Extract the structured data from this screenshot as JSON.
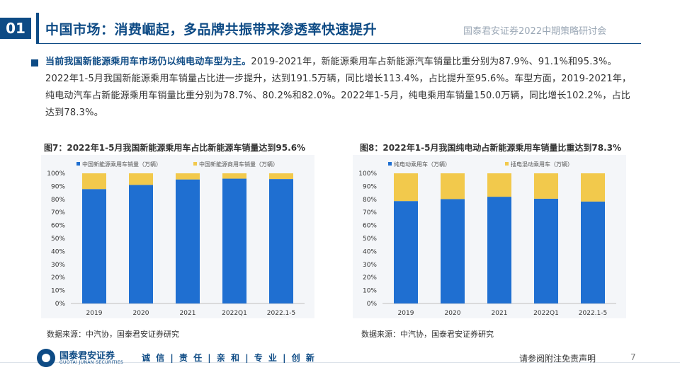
{
  "header": {
    "section_number": "01",
    "title": "中国市场：消费崛起，多品牌共振带来渗透率快速提升",
    "conference": "国泰君安证券2022中期策略研讨会"
  },
  "body": {
    "lead": "当前我国新能源乘用车市场仍以纯电动车型为主。",
    "text": "2019-2021年，新能源乘用车占新能源汽车销量比重分别为87.9%、91.1%和95.3%。2022年1-5月我国新能源乘用车销量占比进一步提升，达到191.5万辆，同比增长113.4%，占比提升至95.6%。车型方面，2019-2021年，纯电动汽车占新能源乘用车销量比重分别为78.7%、80.2%和82.0%。2022年1-5月，纯电乘用车销量150.0万辆，同比增长102.2%，占比达到78.3%。"
  },
  "figures": {
    "fig7_title": "图7：2022年1-5月我国新能源乘用车占比新能源车销量达到95.6%",
    "fig8_title": "图8：2022年1-5月我国纯电动占新能源乘用车销量比重达到78.3%",
    "fig7_source": "数据来源：中汽协，国泰君安证券研究",
    "fig8_source": "数据来源：中汽协，国泰君安证券研究"
  },
  "chart_data": [
    {
      "type": "bar",
      "stacked": true,
      "categories": [
        "2019",
        "2020",
        "2021",
        "2022Q1",
        "2022.1-5"
      ],
      "series": [
        {
          "name": "中国新能源乘用车销量（万辆）",
          "values": [
            87.9,
            91.1,
            95.3,
            95.9,
            95.6
          ],
          "color": "#1f6fd1"
        },
        {
          "name": "中国新能源商用车销量（万辆）",
          "values": [
            12.1,
            8.9,
            4.7,
            4.1,
            4.4
          ],
          "color": "#f2c94c"
        }
      ],
      "ylim": [
        0,
        100
      ],
      "yticks": [
        "0%",
        "10%",
        "20%",
        "30%",
        "40%",
        "50%",
        "60%",
        "70%",
        "80%",
        "90%",
        "100%"
      ],
      "legend": "top",
      "grid": false
    },
    {
      "type": "bar",
      "stacked": true,
      "categories": [
        "2019",
        "2020",
        "2021",
        "2022Q1",
        "2022.1-5"
      ],
      "series": [
        {
          "name": "纯电动乘用车（万辆）",
          "values": [
            78.7,
            80.2,
            82.0,
            80.5,
            78.3
          ],
          "color": "#1f6fd1"
        },
        {
          "name": "插电混动乘用车（万辆）",
          "values": [
            21.3,
            19.8,
            18.0,
            19.5,
            21.7
          ],
          "color": "#f2c94c"
        }
      ],
      "ylim": [
        0,
        100
      ],
      "yticks": [
        "0%",
        "10%",
        "20%",
        "30%",
        "40%",
        "50%",
        "60%",
        "70%",
        "80%",
        "90%",
        "100%"
      ],
      "legend": "top",
      "grid": false
    }
  ],
  "footer": {
    "logo_cn": "国泰君安证券",
    "logo_en": "GUOTAI JUNAN SECURITIES",
    "slogan": "诚 信 | 责 任 | 亲 和 | 专 业 | 创 新",
    "disclaimer": "请参阅附注免责声明",
    "page": "7"
  }
}
